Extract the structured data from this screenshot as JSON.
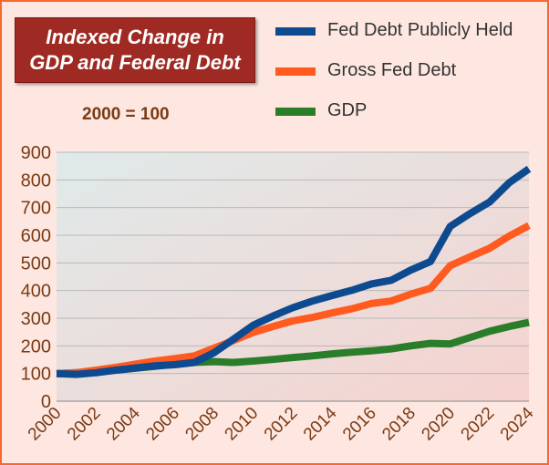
{
  "title_line1": "Indexed Change in",
  "title_line2": "GDP and Federal Debt",
  "subtitle": "2000 = 100",
  "colors": {
    "frame": "#f26a2e",
    "background": "#fde7e0",
    "title_box": "#9e2a23"
  },
  "chart_data": {
    "type": "line",
    "title": "Indexed Change in GDP and Federal Debt",
    "subtitle": "2000 = 100",
    "xlabel": "",
    "ylabel": "",
    "x": [
      2000,
      2001,
      2002,
      2003,
      2004,
      2005,
      2006,
      2007,
      2008,
      2009,
      2010,
      2011,
      2012,
      2013,
      2014,
      2015,
      2016,
      2017,
      2018,
      2019,
      2020,
      2021,
      2022,
      2023,
      2024
    ],
    "x_tick_labels": [
      "2000",
      "2002",
      "2004",
      "2006",
      "2008",
      "2010",
      "2012",
      "2014",
      "2016",
      "2018",
      "2020",
      "2022",
      "2024"
    ],
    "y_tick_labels": [
      "0",
      "100",
      "200",
      "300",
      "400",
      "500",
      "600",
      "700",
      "800",
      "900"
    ],
    "xlim": [
      2000,
      2024
    ],
    "ylim": [
      0,
      900
    ],
    "grid": true,
    "legend_position": "top-right",
    "series": [
      {
        "name": "Fed Debt Publicly Held",
        "color": "#0d4a8f",
        "values": [
          100,
          97,
          103,
          112,
          120,
          128,
          132,
          140,
          175,
          225,
          275,
          308,
          338,
          362,
          382,
          401,
          424,
          437,
          474,
          505,
          632,
          678,
          720,
          790,
          840
        ]
      },
      {
        "name": "Gross Fed Debt",
        "color": "#ff5a1f",
        "values": [
          100,
          103,
          112,
          122,
          134,
          145,
          154,
          164,
          192,
          220,
          249,
          270,
          290,
          303,
          319,
          334,
          353,
          362,
          387,
          408,
          490,
          522,
          553,
          597,
          635
        ]
      },
      {
        "name": "GDP",
        "color": "#2a7d2a",
        "values": [
          100,
          103,
          107,
          112,
          119,
          126,
          134,
          140,
          143,
          140,
          145,
          151,
          158,
          164,
          171,
          177,
          182,
          189,
          200,
          209,
          207,
          230,
          253,
          270,
          285
        ]
      }
    ]
  }
}
